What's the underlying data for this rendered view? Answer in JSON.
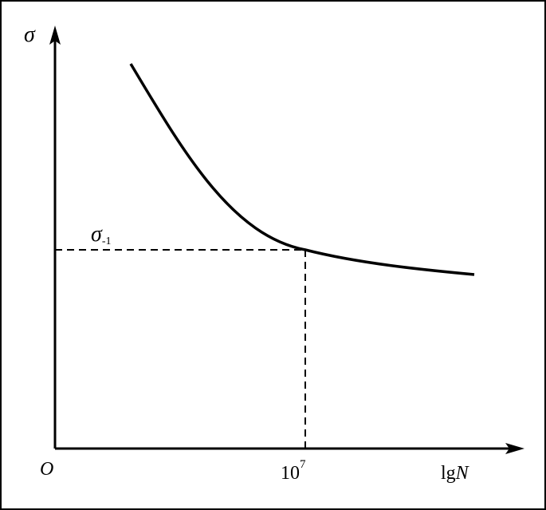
{
  "labels": {
    "y_axis": "σ",
    "x_axis": {
      "prefix": "lg",
      "variable": "N"
    },
    "origin": "O",
    "x_mark": {
      "base": "10",
      "exponent": "7"
    },
    "y_mark": {
      "symbol": "σ",
      "subscript": "-1"
    }
  }
}
